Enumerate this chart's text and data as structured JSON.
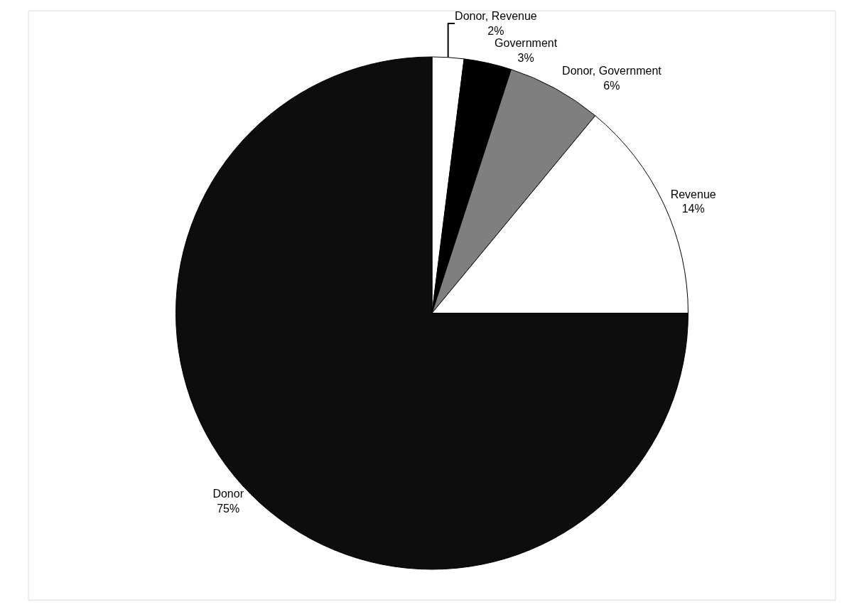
{
  "chart_data": {
    "type": "pie",
    "categories": [
      "Donor, Revenue",
      "Government",
      "Donor, Government",
      "Revenue",
      "Donor"
    ],
    "values": [
      2,
      3,
      6,
      14,
      75
    ],
    "colors": [
      "#ffffff",
      "#000000",
      "#7f7f7f",
      "#ffffff",
      "#0d0d0d"
    ],
    "value_labels": [
      "2%",
      "3%",
      "6%",
      "14%",
      "75%"
    ],
    "legend": false
  }
}
